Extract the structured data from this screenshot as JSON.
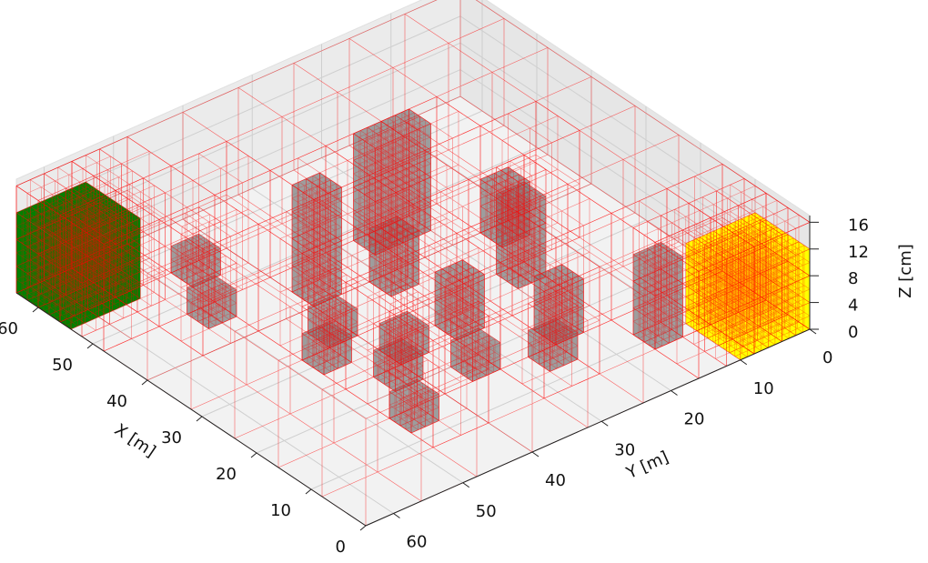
{
  "chart_data": {
    "type": "octree3d",
    "xlabel": "X [m]",
    "ylabel": "Y [m]",
    "zlabel": "Z [cm]",
    "xlim": [
      0,
      64
    ],
    "ylim": [
      0,
      64
    ],
    "zlim": [
      0,
      17
    ],
    "xticks": [
      0,
      10,
      20,
      30,
      40,
      50,
      60
    ],
    "yticks": [
      0,
      10,
      20,
      30,
      40,
      50,
      60
    ],
    "zticks": [
      0,
      4,
      8,
      12,
      16
    ],
    "grid": true,
    "wire_color": "#ff0000",
    "obstacle_color": "#808080",
    "start": {
      "color": "#008000",
      "box": [
        54,
        64,
        54,
        64,
        0,
        12
      ]
    },
    "goal": {
      "color": "#ffff00",
      "box": [
        0,
        10,
        0,
        10,
        0,
        12
      ]
    },
    "obstacles": [
      [
        44,
        48,
        20,
        28,
        0,
        16
      ],
      [
        40,
        44,
        36,
        40,
        0,
        16
      ],
      [
        44,
        48,
        48,
        52,
        0,
        4
      ],
      [
        36,
        40,
        28,
        32,
        0,
        8
      ],
      [
        32,
        36,
        40,
        44,
        0,
        4
      ],
      [
        28,
        32,
        16,
        20,
        0,
        12
      ],
      [
        24,
        28,
        28,
        32,
        0,
        8
      ],
      [
        20,
        24,
        40,
        44,
        0,
        4
      ],
      [
        12,
        16,
        44,
        48,
        0,
        4
      ],
      [
        16,
        20,
        20,
        24,
        0,
        8
      ],
      [
        24,
        28,
        36,
        40,
        0,
        4
      ],
      [
        8,
        12,
        12,
        16,
        0,
        12
      ],
      [
        12,
        16,
        24,
        28,
        0,
        4
      ],
      [
        52,
        56,
        44,
        48,
        0,
        4
      ],
      [
        36,
        40,
        12,
        16,
        0,
        8
      ],
      [
        28,
        32,
        44,
        48,
        0,
        4
      ],
      [
        16,
        20,
        32,
        36,
        0,
        4
      ]
    ]
  }
}
